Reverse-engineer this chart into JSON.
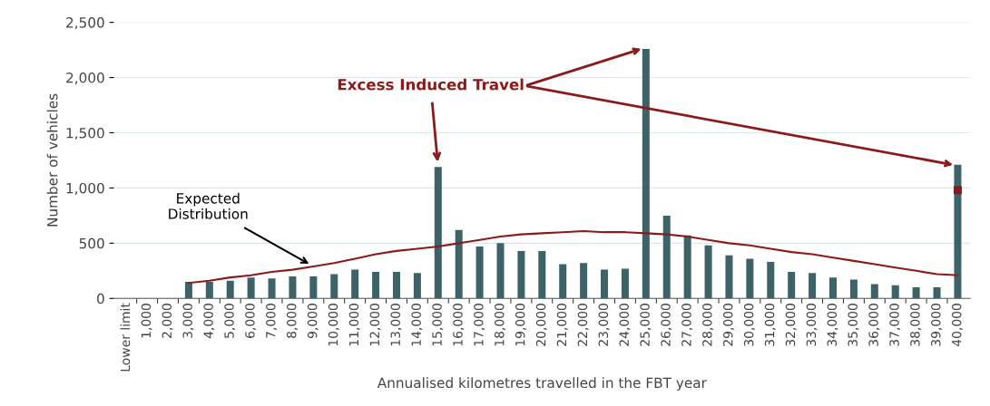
{
  "chart_data": {
    "type": "bar",
    "xlabel": "Annualised kilometres travelled in the FBT year",
    "ylabel": "Number of vehicles",
    "categories": [
      "Lower limit",
      "1,000",
      "2,000",
      "3,000",
      "4,000",
      "5,000",
      "6,000",
      "7,000",
      "8,000",
      "9,000",
      "10,000",
      "11,000",
      "12,000",
      "13,000",
      "14,000",
      "15,000",
      "16,000",
      "17,000",
      "18,000",
      "19,000",
      "20,000",
      "21,000",
      "22,000",
      "23,000",
      "24,000",
      "25,000",
      "26,000",
      "27,000",
      "28,000",
      "29,000",
      "30,000",
      "31,000",
      "32,000",
      "33,000",
      "34,000",
      "35,000",
      "36,000",
      "37,000",
      "38,000",
      "39,000",
      "40,000"
    ],
    "series": [
      {
        "color": "#3d6369",
        "values": [
          null,
          null,
          null,
          150,
          150,
          160,
          190,
          180,
          200,
          200,
          220,
          260,
          240,
          240,
          230,
          1190,
          620,
          470,
          500,
          430,
          430,
          310,
          320,
          260,
          270,
          2260,
          750,
          570,
          480,
          390,
          360,
          330,
          240,
          230,
          190,
          170,
          130,
          120,
          100,
          100,
          1210
        ]
      },
      {
        "type": "line",
        "color": "#8b1a1a",
        "values": [
          null,
          null,
          null,
          140,
          160,
          190,
          210,
          240,
          260,
          290,
          320,
          360,
          400,
          430,
          450,
          470,
          500,
          530,
          560,
          580,
          590,
          600,
          610,
          600,
          600,
          590,
          580,
          560,
          530,
          500,
          480,
          450,
          420,
          400,
          370,
          340,
          310,
          280,
          250,
          220,
          210
        ]
      },
      {
        "type": "scatter",
        "color": "#8b1a1a",
        "marker": "square",
        "values": [
          null,
          null,
          null,
          null,
          null,
          null,
          null,
          null,
          null,
          null,
          null,
          null,
          null,
          null,
          null,
          null,
          null,
          null,
          null,
          null,
          null,
          null,
          null,
          null,
          null,
          null,
          null,
          null,
          null,
          null,
          null,
          null,
          null,
          null,
          null,
          null,
          null,
          null,
          null,
          null,
          980
        ]
      }
    ],
    "ylim": [
      0,
      2500
    ],
    "yticks": [
      0,
      500,
      {
        "value": 1000,
        "label": "1,000"
      },
      {
        "value": 1500,
        "label": "1,500"
      },
      {
        "value": 2000,
        "label": "2,000"
      },
      {
        "value": 2500,
        "label": "2,500"
      }
    ],
    "grid": "y",
    "annotations": [
      {
        "text": "Expected\nDistribution",
        "x": "9,000",
        "y": 290
      },
      {
        "text": "Excess Induced Travel",
        "x": "15,000",
        "y": 1190
      },
      {
        "x": "25,000"
      },
      {
        "x": "40,000"
      }
    ]
  }
}
